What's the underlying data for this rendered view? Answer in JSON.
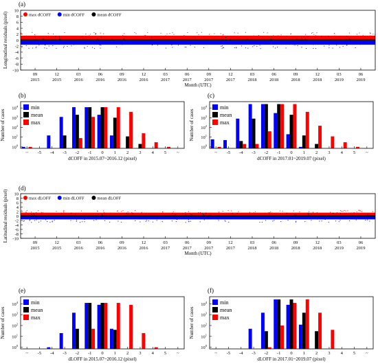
{
  "colors": {
    "max": "#ff0000",
    "min": "#0000ff",
    "mean": "#000000"
  },
  "month_ticks": [
    {
      "m": "09",
      "y": "2015"
    },
    {
      "m": "12",
      "y": "2015"
    },
    {
      "m": "03",
      "y": "2016"
    },
    {
      "m": "06",
      "y": "2016"
    },
    {
      "m": "09",
      "y": "2016"
    },
    {
      "m": "12",
      "y": "2016"
    },
    {
      "m": "03",
      "y": "2017"
    },
    {
      "m": "06",
      "y": "2017"
    },
    {
      "m": "09",
      "y": "2017"
    },
    {
      "m": "12",
      "y": "2017"
    },
    {
      "m": "03",
      "y": "2018"
    },
    {
      "m": "06",
      "y": "2018"
    },
    {
      "m": "09",
      "y": "2018"
    },
    {
      "m": "12",
      "y": "2018"
    },
    {
      "m": "03",
      "y": "2019"
    },
    {
      "m": "06",
      "y": "2019"
    }
  ],
  "chart_data": [
    {
      "panel": "(a)",
      "type": "scatter",
      "ylabel": "Longitudinal residuals (pixel)",
      "xlabel": "Month (UTC)",
      "ylim": [
        -10,
        10
      ],
      "yticks": [
        10,
        8,
        6,
        4,
        2,
        0,
        -2,
        -4,
        -6,
        -8,
        -10
      ],
      "xlim": [
        "2015-07",
        "2019-08"
      ],
      "legend": [
        "max dCOFF",
        "min dCOFF",
        "mean dCOFF"
      ],
      "legend_position": "top-left",
      "bands": [
        {
          "series": "max dCOFF",
          "lower": 0.3,
          "upper": 1.5
        },
        {
          "series": "mean dCOFF",
          "lower": -0.3,
          "upper": 0.3
        },
        {
          "series": "min dCOFF",
          "lower": -1.5,
          "upper": -0.3
        }
      ]
    },
    {
      "panel": "(b)",
      "type": "bar",
      "scale": "log",
      "ylabel": "Number of cases",
      "xlabel": "dCOFF in 2015.07~2016.12 (pixel)",
      "yticks": [
        "10^0",
        "10^1",
        "10^2",
        "10^3",
        "10^4"
      ],
      "categories": [
        "~",
        "-5",
        "-4",
        "-3",
        "-2",
        "-1",
        "0",
        "1",
        "2",
        "3",
        "4",
        "5",
        "~"
      ],
      "legend_position": "top-left",
      "series": [
        {
          "name": "min",
          "values": [
            1,
            0,
            15,
            1200,
            12000,
            12000,
            2000,
            15,
            0,
            0,
            0,
            0,
            0
          ]
        },
        {
          "name": "mean",
          "values": [
            0,
            0,
            0,
            15,
            2000,
            12000,
            12000,
            1000,
            12,
            2,
            0,
            0,
            0
          ]
        },
        {
          "name": "max",
          "values": [
            1,
            0,
            0,
            0,
            8,
            1200,
            12000,
            12000,
            4000,
            25,
            3,
            1,
            0
          ]
        }
      ]
    },
    {
      "panel": "(c)",
      "type": "bar",
      "scale": "log",
      "ylabel": "Number of cases",
      "xlabel": "dCOFF in 2017.01~2019.07 (pixel)",
      "yticks": [
        "10^0",
        "10^1",
        "10^2",
        "10^3",
        "10^4"
      ],
      "categories": [
        "~",
        "-5",
        "-4",
        "-3",
        "-2",
        "-1",
        "0",
        "1",
        "2",
        "3",
        "4",
        "5",
        "~"
      ],
      "legend_position": "top-left",
      "series": [
        {
          "name": "min",
          "values": [
            6,
            5,
            800,
            25000,
            25000,
            3000,
            20,
            1,
            0,
            0,
            0,
            0,
            0
          ]
        },
        {
          "name": "mean",
          "values": [
            0,
            0,
            4,
            800,
            25000,
            25000,
            2000,
            15,
            2,
            0,
            0,
            0,
            0
          ]
        },
        {
          "name": "max",
          "values": [
            1,
            0,
            2,
            2,
            40,
            25000,
            25000,
            4000,
            150,
            12,
            3,
            1,
            0
          ]
        }
      ]
    },
    {
      "panel": "(d)",
      "type": "scatter",
      "ylabel": "Latitudinal residuals (pixel)",
      "xlabel": "Month (UTC)",
      "ylim": [
        -10,
        10
      ],
      "yticks": [
        10,
        8,
        6,
        4,
        2,
        0,
        -2,
        -4,
        -6,
        -8,
        -10
      ],
      "xlim": [
        "2015-07",
        "2019-08"
      ],
      "legend": [
        "max dLOFF",
        "min dLOFF",
        "mean dLOFF"
      ],
      "legend_position": "top-left",
      "bands": [
        {
          "series": "max dLOFF",
          "lower": 0.3,
          "upper": 1.5
        },
        {
          "series": "mean dLOFF",
          "lower": -0.3,
          "upper": 0.3
        },
        {
          "series": "min dLOFF",
          "lower": -1.5,
          "upper": -0.3
        }
      ]
    },
    {
      "panel": "(e)",
      "type": "bar",
      "scale": "log",
      "ylabel": "Number of cases",
      "xlabel": "dLOFF in 2015.07~2016.12 (pixel)",
      "yticks": [
        "10^0",
        "10^1",
        "10^2",
        "10^3",
        "10^4"
      ],
      "categories": [
        "~",
        "-5",
        "-4",
        "-3",
        "-2",
        "-1",
        "0",
        "1",
        "2",
        "3",
        "4",
        "5",
        "~"
      ],
      "legend_position": "top-left",
      "series": [
        {
          "name": "min",
          "values": [
            0,
            0,
            1,
            20,
            1500,
            12000,
            8000,
            50,
            0,
            0,
            0,
            0,
            0
          ]
        },
        {
          "name": "mean",
          "values": [
            0,
            0,
            0,
            0,
            50,
            12000,
            12000,
            40,
            0,
            0,
            0,
            0,
            0
          ]
        },
        {
          "name": "max",
          "values": [
            0,
            0,
            0,
            0,
            0,
            50,
            12000,
            12000,
            8000,
            20,
            1,
            0,
            0
          ]
        }
      ]
    },
    {
      "panel": "(f)",
      "type": "bar",
      "scale": "log",
      "ylabel": "Number of cases",
      "xlabel": "dLOFF in 2017.01~2019.07 (pixel)",
      "yticks": [
        "10^0",
        "10^1",
        "10^2",
        "10^3",
        "10^4"
      ],
      "categories": [
        "~",
        "-5",
        "-4",
        "-3",
        "-2",
        "-1",
        "0",
        "1",
        "2",
        "3",
        "4",
        "5",
        "~"
      ],
      "legend_position": "top-left",
      "series": [
        {
          "name": "min",
          "values": [
            0,
            0,
            0,
            50,
            1500,
            25000,
            8000,
            120,
            0,
            0,
            0,
            0,
            0
          ]
        },
        {
          "name": "mean",
          "values": [
            0,
            0,
            0,
            0,
            30,
            25000,
            25000,
            1500,
            30,
            0,
            0,
            0,
            0
          ]
        },
        {
          "name": "max",
          "values": [
            0,
            0,
            0,
            0,
            1,
            100,
            12000,
            25000,
            1500,
            40,
            0,
            0,
            0
          ]
        }
      ]
    }
  ]
}
